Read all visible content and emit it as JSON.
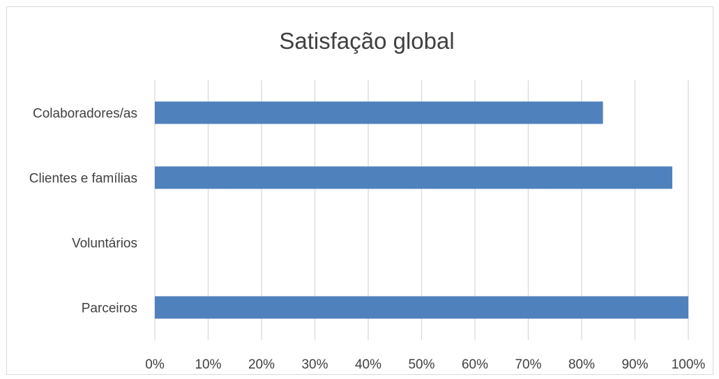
{
  "chart_data": {
    "type": "bar",
    "orientation": "horizontal",
    "title": "Satisfação global",
    "categories": [
      "Colaboradores/as",
      "Clientes e famílias",
      "Voluntários",
      "Parceiros"
    ],
    "series": [
      {
        "values": [
          84,
          97,
          0,
          100
        ]
      }
    ],
    "xlim": [
      0,
      100
    ],
    "x_ticks": [
      "0%",
      "10%",
      "20%",
      "30%",
      "40%",
      "50%",
      "60%",
      "70%",
      "80%",
      "90%",
      "100%"
    ],
    "grid": true,
    "bar_color": "#4f81bd",
    "legend": "none"
  }
}
